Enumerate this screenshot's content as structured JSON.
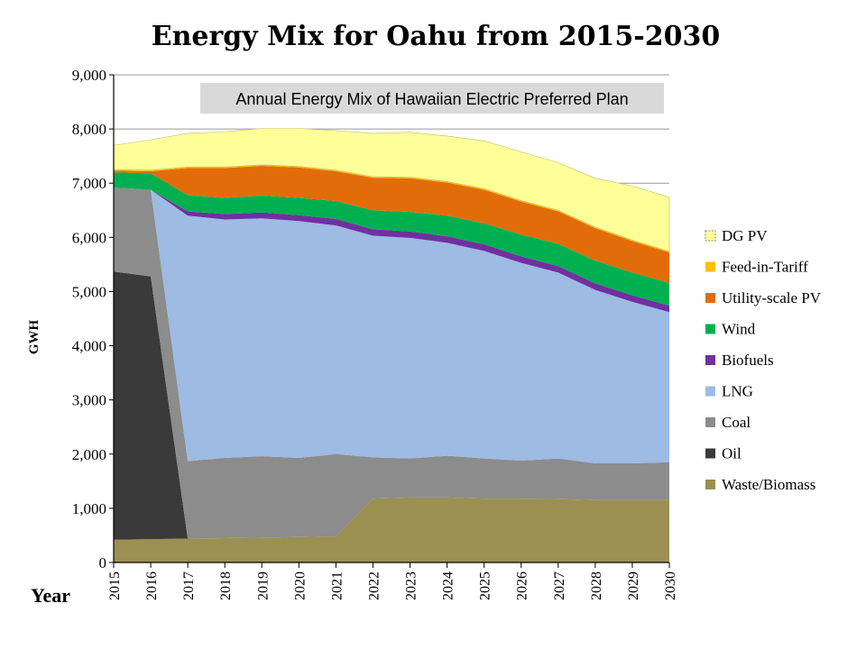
{
  "chart_data": {
    "type": "area",
    "stacked": true,
    "title": "Energy Mix for Oahu from 2015-2030",
    "subtitle": "Annual Energy Mix of Hawaiian Electric Preferred Plan",
    "xlabel": "Year",
    "ylabel": "GWH",
    "ylim": [
      0,
      9000
    ],
    "yticks": [
      0,
      1000,
      2000,
      3000,
      4000,
      5000,
      6000,
      7000,
      8000,
      9000
    ],
    "ytick_labels": [
      "0",
      "1,000",
      "2,000",
      "3,000",
      "4,000",
      "5,000",
      "6,000",
      "7,000",
      "8,000",
      "9,000"
    ],
    "x": [
      "2015",
      "2016",
      "2017",
      "2018",
      "2019",
      "2020",
      "2021",
      "2022",
      "2023",
      "2024",
      "2025",
      "2026",
      "2027",
      "2028",
      "2029",
      "2030"
    ],
    "grid": "horizontal",
    "legend_position": "right",
    "series": [
      {
        "name": "Waste/Biomass",
        "color": "#9c8f52",
        "values": [
          420,
          430,
          440,
          450,
          460,
          470,
          480,
          1180,
          1200,
          1200,
          1180,
          1180,
          1170,
          1150,
          1150,
          1150
        ]
      },
      {
        "name": "Oil",
        "color": "#3a3a3a",
        "values": [
          4950,
          4850,
          0,
          0,
          0,
          0,
          0,
          0,
          0,
          0,
          0,
          0,
          0,
          0,
          0,
          0
        ]
      },
      {
        "name": "Coal",
        "color": "#8c8c8c",
        "values": [
          1550,
          1600,
          1430,
          1480,
          1500,
          1460,
          1520,
          760,
          720,
          770,
          740,
          700,
          750,
          680,
          680,
          700
        ]
      },
      {
        "name": "LNG",
        "color": "#9dbbe3",
        "values": [
          0,
          0,
          4530,
          4400,
          4390,
          4370,
          4220,
          4090,
          4070,
          3930,
          3830,
          3650,
          3430,
          3200,
          2980,
          2770
        ]
      },
      {
        "name": "Biofuels",
        "color": "#7030a0",
        "values": [
          0,
          0,
          80,
          100,
          110,
          110,
          120,
          120,
          120,
          120,
          120,
          120,
          120,
          120,
          120,
          120
        ]
      },
      {
        "name": "Wind",
        "color": "#00b050",
        "values": [
          280,
          300,
          300,
          300,
          310,
          320,
          330,
          350,
          360,
          380,
          390,
          400,
          410,
          420,
          420,
          420
        ]
      },
      {
        "name": "Utility-scale PV",
        "color": "#e36c0a",
        "values": [
          30,
          40,
          500,
          550,
          550,
          560,
          550,
          600,
          620,
          610,
          620,
          610,
          600,
          600,
          580,
          560
        ]
      },
      {
        "name": "Feed-in-Tariff",
        "color": "#ffc000",
        "values": [
          20,
          20,
          20,
          20,
          20,
          20,
          20,
          20,
          20,
          20,
          20,
          20,
          20,
          20,
          20,
          20
        ]
      },
      {
        "name": "DG PV",
        "color": "#ffff99",
        "values": [
          450,
          560,
          620,
          650,
          670,
          700,
          730,
          800,
          830,
          840,
          880,
          900,
          880,
          900,
          1000,
          1000
        ]
      }
    ],
    "legend_order": [
      "DG PV",
      "Feed-in-Tariff",
      "Utility-scale PV",
      "Wind",
      "Biofuels",
      "LNG",
      "Coal",
      "Oil",
      "Waste/Biomass"
    ]
  }
}
